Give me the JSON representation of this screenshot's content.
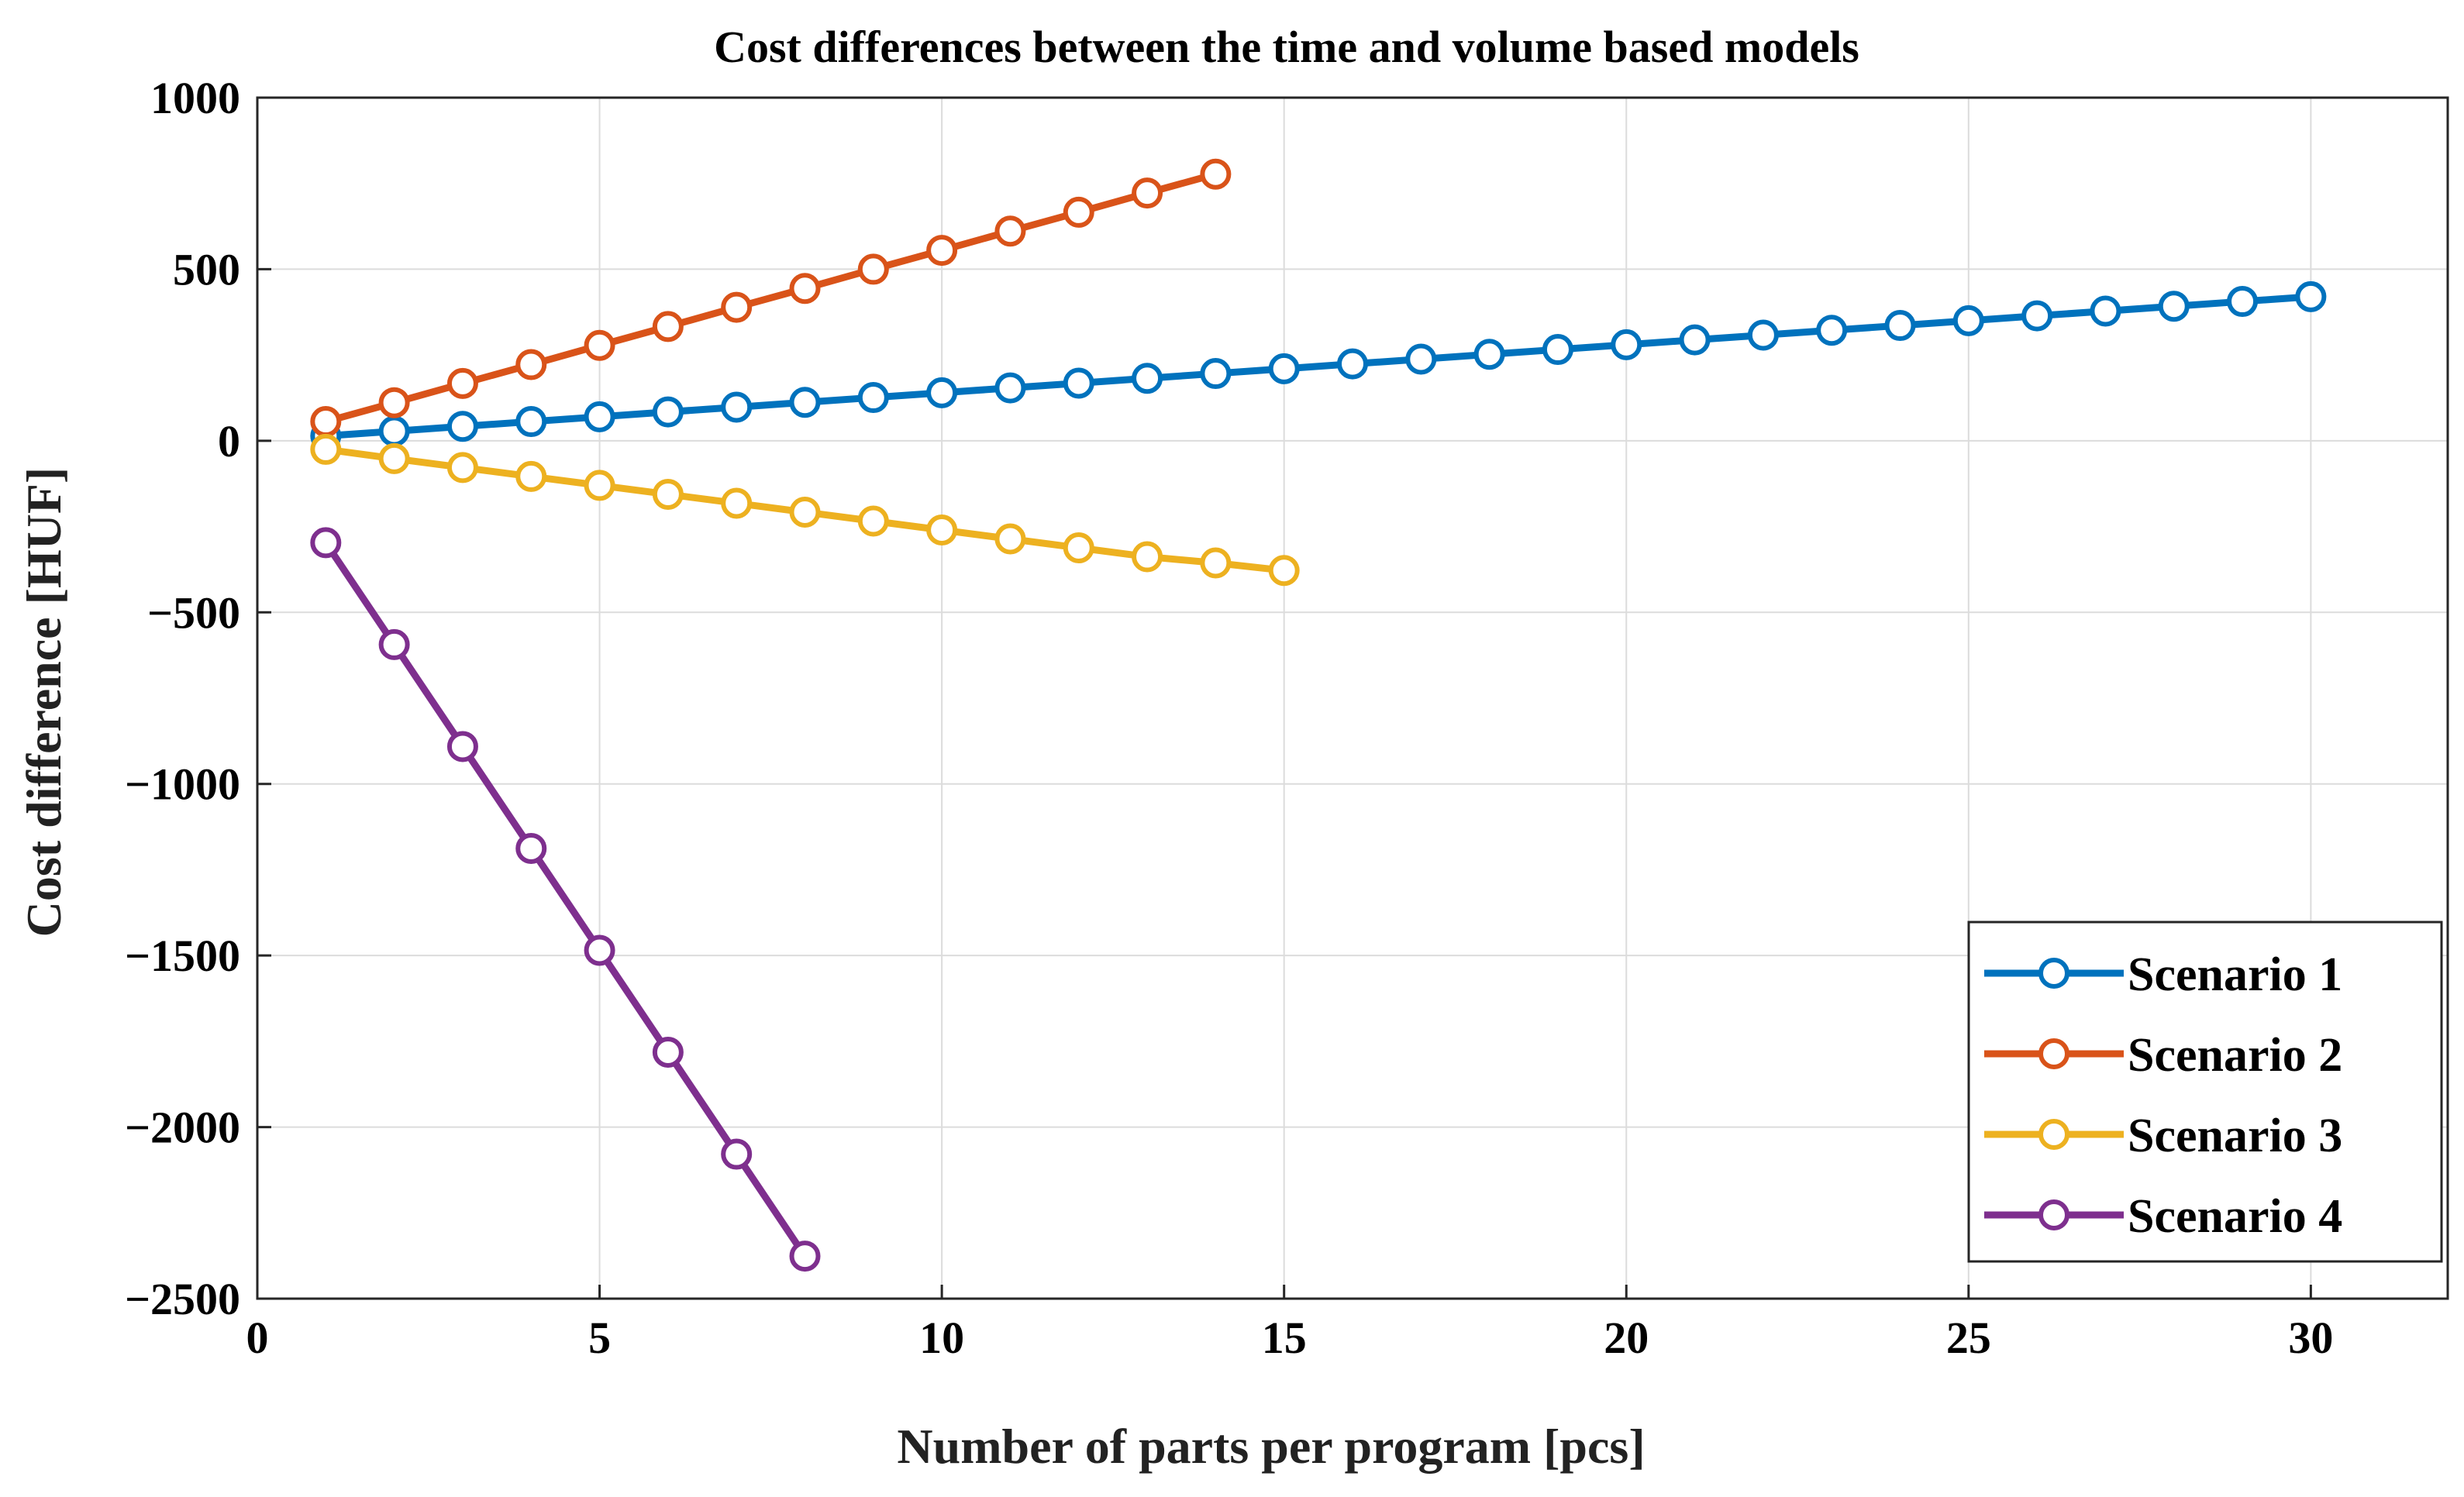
{
  "chart_data": {
    "type": "line",
    "title": "Cost differences between the time and volume based models",
    "xlabel": "Number of parts per program [pcs]",
    "ylabel": "Cost difference [HUF]",
    "xlim": [
      0,
      32
    ],
    "ylim": [
      -2500,
      1000
    ],
    "xticks": [
      0,
      5,
      10,
      15,
      20,
      25,
      30
    ],
    "yticks": [
      1000,
      500,
      0,
      -500,
      -1000,
      -1500,
      -2000,
      -2500
    ],
    "xtick_labels": [
      "0",
      "5",
      "10",
      "15",
      "20",
      "25",
      "30"
    ],
    "ytick_labels": [
      "1000",
      "500",
      "0",
      "−500",
      "−1000",
      "−1500",
      "−2000",
      "−2500"
    ],
    "grid": true,
    "legend_position": "bottom-right",
    "marker": "circle",
    "series": [
      {
        "name": "Scenario 1",
        "color": "#0072BD",
        "x": [
          1,
          2,
          3,
          4,
          5,
          6,
          7,
          8,
          9,
          10,
          11,
          12,
          13,
          14,
          15,
          16,
          17,
          18,
          19,
          20,
          21,
          22,
          23,
          24,
          25,
          26,
          27,
          28,
          29,
          30
        ],
        "values": [
          14,
          28,
          42,
          56,
          70,
          84,
          98,
          112,
          126,
          140,
          154,
          168,
          182,
          196,
          210,
          224,
          238,
          252,
          266,
          280,
          294,
          308,
          322,
          336,
          350,
          364,
          378,
          392,
          406,
          420
        ]
      },
      {
        "name": "Scenario 2",
        "color": "#D95319",
        "x": [
          1,
          2,
          3,
          4,
          5,
          6,
          7,
          8,
          9,
          10,
          11,
          12,
          13,
          14
        ],
        "values": [
          56,
          111,
          167,
          222,
          278,
          333,
          389,
          444,
          500,
          555,
          611,
          666,
          722,
          777
        ]
      },
      {
        "name": "Scenario 3",
        "color": "#EDB120",
        "x": [
          1,
          2,
          3,
          4,
          5,
          6,
          7,
          8,
          9,
          10,
          11,
          12,
          13,
          14,
          15
        ],
        "values": [
          -25,
          -52,
          -78,
          -104,
          -130,
          -156,
          -182,
          -208,
          -234,
          -260,
          -286,
          -312,
          -338,
          -356,
          -378
        ]
      },
      {
        "name": "Scenario 4",
        "color": "#7E2F8E",
        "x": [
          1,
          2,
          3,
          4,
          5,
          6,
          7,
          8
        ],
        "values": [
          -297,
          -594,
          -891,
          -1188,
          -1485,
          -1782,
          -2079,
          -2376
        ]
      }
    ]
  }
}
